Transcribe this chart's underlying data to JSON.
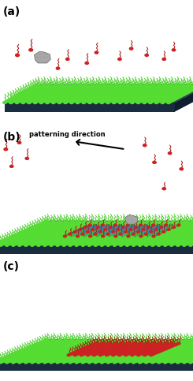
{
  "fig_width": 2.45,
  "fig_height": 4.83,
  "dpi": 100,
  "bg_color": "#ffffff",
  "labels": [
    "(a)",
    "(b)",
    "(c)"
  ],
  "label_fontsize": 10,
  "label_fontweight": "bold",
  "patterning_text": "patterning direction",
  "substrate_front": "#1a2d40",
  "substrate_right": "#0f1e2d",
  "substrate_top": "#1e3348",
  "green_mol_color": "#44cc22",
  "green_ball_color": "#55dd33",
  "red_mol_color": "#aa1111",
  "red_ball_color": "#cc2222",
  "tip_color_light": "#b0b0b0",
  "tip_color_dark": "#7a7a7a",
  "shaved_color": "#3399bb",
  "arrow_color": "#111111"
}
